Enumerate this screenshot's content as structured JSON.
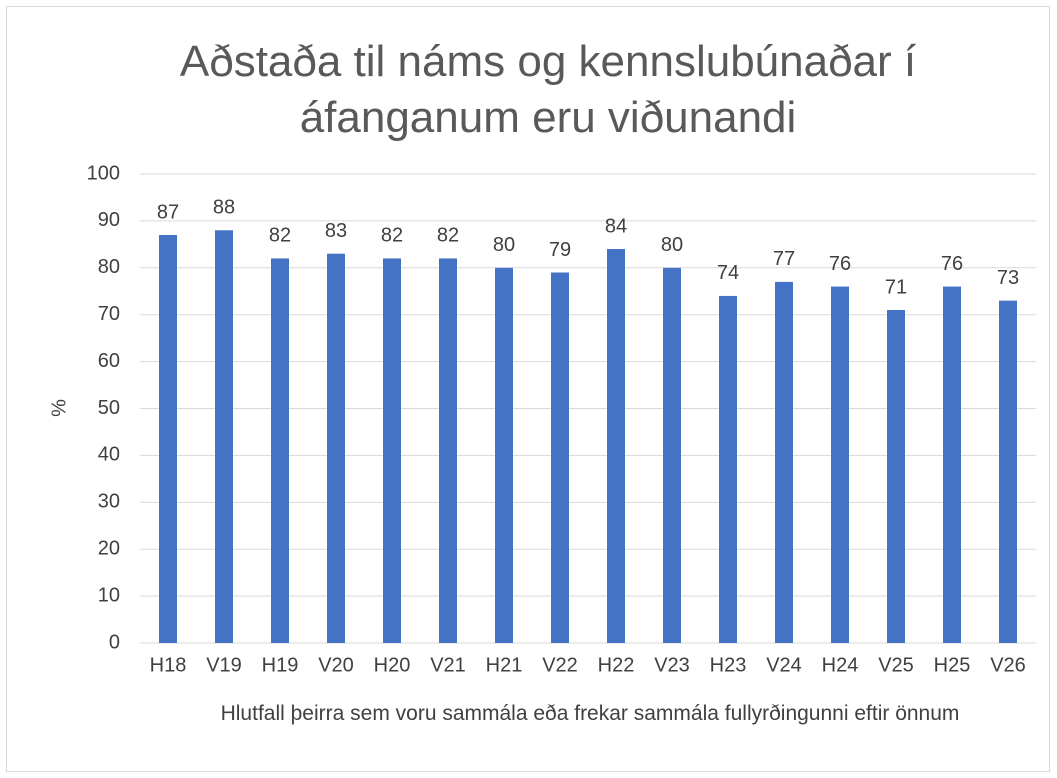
{
  "chart_data": {
    "type": "bar",
    "title": "Aðstaða til náms og kennslubúnaðar í áfanganum eru viðunandi",
    "x_label": "Hlutfall þeirra sem voru sammála eða frekar sammála fullyrðingunni eftir önnum",
    "y_label": "%",
    "categories": [
      "H18",
      "V19",
      "H19",
      "V20",
      "H20",
      "V21",
      "H21",
      "V22",
      "H22",
      "V23",
      "H23",
      "V24",
      "H24",
      "V25",
      "H25",
      "V26"
    ],
    "values": [
      87,
      88,
      82,
      83,
      82,
      82,
      80,
      79,
      84,
      80,
      74,
      77,
      76,
      71,
      76,
      73
    ],
    "color": "#4472c4",
    "ylim": [
      0,
      100
    ],
    "yticks": [
      0,
      10,
      20,
      30,
      40,
      50,
      60,
      70,
      80,
      90,
      100
    ],
    "grid": true
  }
}
